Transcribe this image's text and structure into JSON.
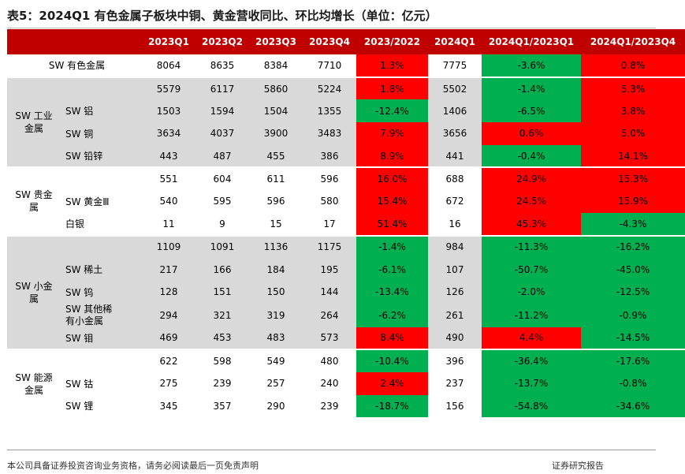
{
  "title": "表5：2024Q1 有色金属子板块中铜、黄金营收同比、环比均增长（单位：亿元）",
  "columns": [
    "",
    "",
    "2023Q1",
    "2023Q2",
    "2023Q3",
    "2023Q4",
    "2023/2022",
    "2024Q1",
    "2024Q1/2023Q1",
    "2024Q1/2023Q4"
  ],
  "rows": [
    {
      "group": "",
      "sub": "SW 有色金属",
      "q1": "8064",
      "q2": "8635",
      "q3": "8384",
      "q4": "7710",
      "yoy": "1.3%",
      "yoy_sign": "pos",
      "q24": "7775",
      "g1": "-3.6%",
      "g1_sign": "neg",
      "g2": "0.8%",
      "g2_sign": "pos",
      "gray": false
    },
    {
      "group": "SW 工业\n金属",
      "sub": "",
      "q1": "5579",
      "q2": "6117",
      "q3": "5860",
      "q4": "5224",
      "yoy": "1.8%",
      "yoy_sign": "pos",
      "q24": "5502",
      "g1": "-1.4%",
      "g1_sign": "neg",
      "g2": "5.3%",
      "g2_sign": "pos",
      "gray": true
    },
    {
      "group": "",
      "sub": "SW 铝",
      "q1": "1503",
      "q2": "1594",
      "q3": "1504",
      "q4": "1355",
      "yoy": "-12.4%",
      "yoy_sign": "neg",
      "q24": "1406",
      "g1": "-6.5%",
      "g1_sign": "neg",
      "g2": "3.8%",
      "g2_sign": "pos",
      "gray": true
    },
    {
      "group": "",
      "sub": "SW 铜",
      "q1": "3634",
      "q2": "4037",
      "q3": "3900",
      "q4": "3483",
      "yoy": "7.9%",
      "yoy_sign": "pos",
      "q24": "3656",
      "g1": "0.6%",
      "g1_sign": "pos",
      "g2": "5.0%",
      "g2_sign": "pos",
      "gray": true
    },
    {
      "group": "",
      "sub": "SW 铅锌",
      "q1": "443",
      "q2": "487",
      "q3": "455",
      "q4": "386",
      "yoy": "8.9%",
      "yoy_sign": "pos",
      "q24": "441",
      "g1": "-0.4%",
      "g1_sign": "neg",
      "g2": "14.1%",
      "g2_sign": "pos",
      "gray": true
    },
    {
      "group": "SW 贵金\n属",
      "sub": "",
      "q1": "551",
      "q2": "604",
      "q3": "611",
      "q4": "596",
      "yoy": "16.0%",
      "yoy_sign": "pos",
      "q24": "688",
      "g1": "24.9%",
      "g1_sign": "pos",
      "g2": "15.3%",
      "g2_sign": "pos",
      "gray": false
    },
    {
      "group": "",
      "sub": "SW 黄金Ⅲ",
      "q1": "540",
      "q2": "595",
      "q3": "596",
      "q4": "580",
      "yoy": "15.4%",
      "yoy_sign": "pos",
      "q24": "672",
      "g1": "24.5%",
      "g1_sign": "pos",
      "g2": "15.9%",
      "g2_sign": "pos",
      "gray": false
    },
    {
      "group": "",
      "sub": "白银",
      "q1": "11",
      "q2": "9",
      "q3": "15",
      "q4": "17",
      "yoy": "51.4%",
      "yoy_sign": "pos",
      "q24": "16",
      "g1": "45.3%",
      "g1_sign": "pos",
      "g2": "-4.3%",
      "g2_sign": "neg",
      "gray": false
    },
    {
      "group": "SW 小金\n属",
      "sub": "",
      "q1": "1109",
      "q2": "1091",
      "q3": "1136",
      "q4": "1175",
      "yoy": "-1.4%",
      "yoy_sign": "neg",
      "q24": "984",
      "g1": "-11.3%",
      "g1_sign": "neg",
      "g2": "-16.2%",
      "g2_sign": "neg",
      "gray": true
    },
    {
      "group": "",
      "sub": "SW 稀土",
      "q1": "217",
      "q2": "166",
      "q3": "184",
      "q4": "195",
      "yoy": "-6.1%",
      "yoy_sign": "neg",
      "q24": "107",
      "g1": "-50.7%",
      "g1_sign": "neg",
      "g2": "-45.0%",
      "g2_sign": "neg",
      "gray": true
    },
    {
      "group": "",
      "sub": "SW 钨",
      "q1": "128",
      "q2": "151",
      "q3": "150",
      "q4": "144",
      "yoy": "-13.4%",
      "yoy_sign": "neg",
      "q24": "126",
      "g1": "-2.0%",
      "g1_sign": "neg",
      "g2": "-12.5%",
      "g2_sign": "neg",
      "gray": true
    },
    {
      "group": "",
      "sub": "SW 其他稀\n有小金属",
      "q1": "294",
      "q2": "321",
      "q3": "319",
      "q4": "264",
      "yoy": "-6.2%",
      "yoy_sign": "neg",
      "q24": "261",
      "g1": "-11.2%",
      "g1_sign": "neg",
      "g2": "-0.9%",
      "g2_sign": "neg",
      "gray": true
    },
    {
      "group": "",
      "sub": "SW 钼",
      "q1": "469",
      "q2": "453",
      "q3": "483",
      "q4": "573",
      "yoy": "8.4%",
      "yoy_sign": "pos",
      "q24": "490",
      "g1": "4.4%",
      "g1_sign": "pos",
      "g2": "-14.5%",
      "g2_sign": "neg",
      "gray": true
    },
    {
      "group": "SW 能源\n金属",
      "sub": "",
      "q1": "622",
      "q2": "598",
      "q3": "549",
      "q4": "480",
      "yoy": "-10.4%",
      "yoy_sign": "neg",
      "q24": "396",
      "g1": "-36.4%",
      "g1_sign": "neg",
      "g2": "-17.6%",
      "g2_sign": "neg",
      "gray": false
    },
    {
      "group": "",
      "sub": "SW 钴",
      "q1": "275",
      "q2": "239",
      "q3": "257",
      "q4": "240",
      "yoy": "2.4%",
      "yoy_sign": "pos",
      "q24": "237",
      "g1": "-13.7%",
      "g1_sign": "neg",
      "g2": "-0.8%",
      "g2_sign": "neg",
      "gray": false
    },
    {
      "group": "",
      "sub": "SW 锂",
      "q1": "345",
      "q2": "357",
      "q3": "290",
      "q4": "239",
      "yoy": "-18.7%",
      "yoy_sign": "neg",
      "q24": "156",
      "g1": "-54.8%",
      "g1_sign": "neg",
      "g2": "-34.6%",
      "g2_sign": "neg",
      "gray": false
    }
  ],
  "colors": {
    "header": "#c00000",
    "positive": "#ff0000",
    "negative": "#00b050",
    "group_gray": "#d9d9d9"
  },
  "footer": {
    "disclaimer": "本公司具备证券投资咨询业务资格，请务必阅读最后一页免责声明",
    "brand": "证券研究报告"
  }
}
